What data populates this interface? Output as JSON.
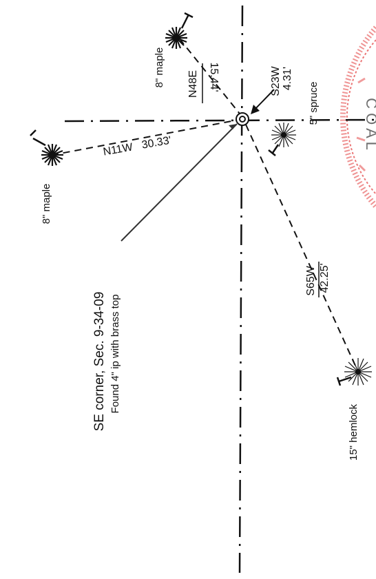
{
  "corner": {
    "title": "SE corner, Sec. 9-34-09",
    "subtitle": "Found 4\" ip with brass top"
  },
  "bearing_trees": [
    {
      "tree": "8\" maple",
      "bearing": "N48E",
      "distance": "15.44'"
    },
    {
      "tree": "8\" maple",
      "bearing": "N11W",
      "distance": "30.33'"
    },
    {
      "tree": "5\" spruce",
      "bearing": "S23W",
      "distance": "4.31'"
    },
    {
      "tree": "15\" hemlock",
      "bearing": "S65W",
      "distance": "42.25'"
    }
  ],
  "colors": {
    "ink": "#111111",
    "stamp": "#e23a3a"
  },
  "icons": {
    "monument": "concentric-circle-monument-icon",
    "tree": "tree-symbol-icon",
    "stamp": "surveyor-seal-stamp"
  }
}
